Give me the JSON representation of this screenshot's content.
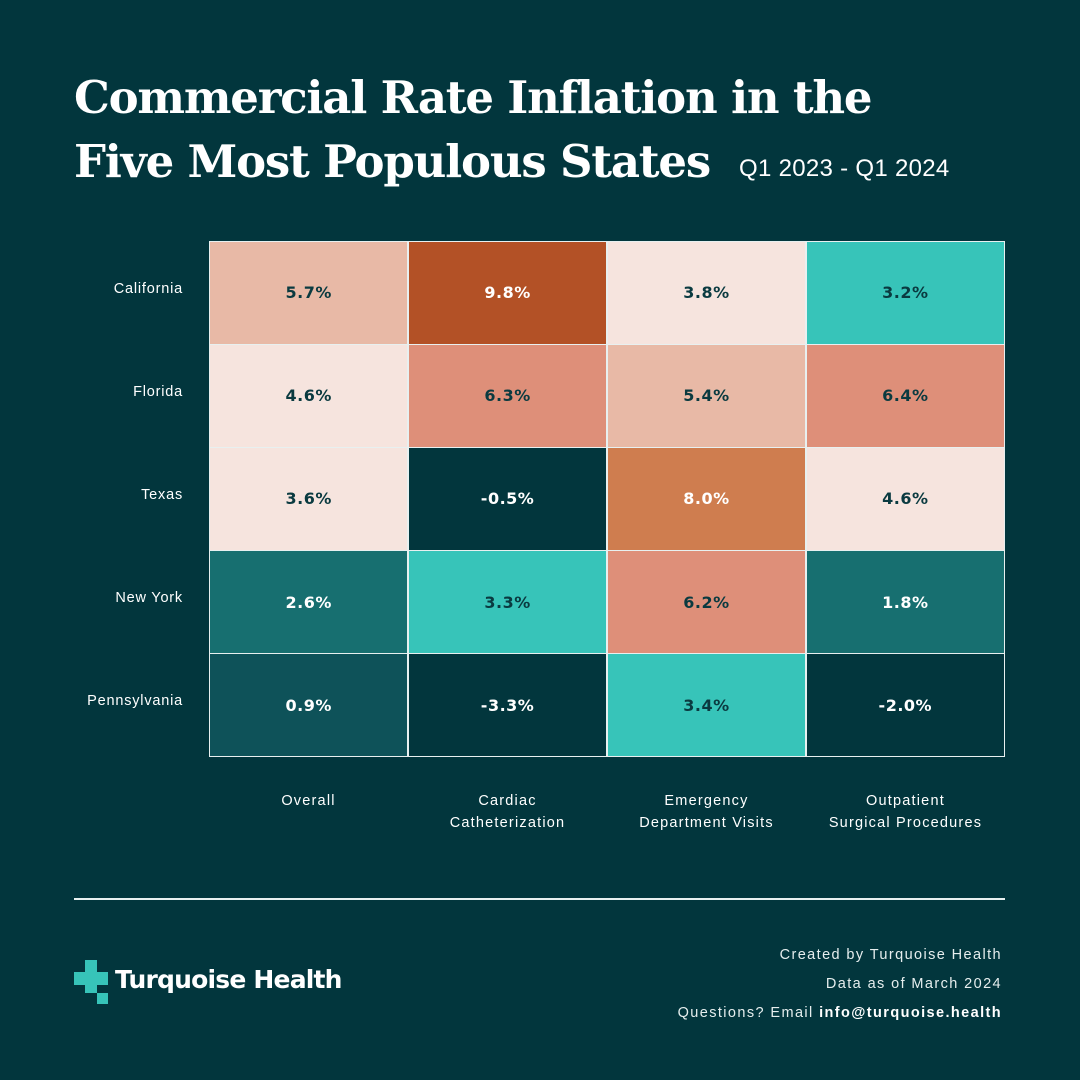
{
  "header": {
    "title_line1": "Commercial Rate Inflation in the",
    "title_line2": "Five Most Populous States",
    "period": "Q1 2023 - Q1 2024"
  },
  "chart_data": {
    "type": "heatmap",
    "title": "Commercial Rate Inflation in the Five Most Populous States",
    "subtitle": "Q1 2023 - Q1 2024",
    "rows": [
      "California",
      "Florida",
      "Texas",
      "New York",
      "Pennsylvania"
    ],
    "columns": [
      [
        "Overall",
        ""
      ],
      [
        "Cardiac",
        "Catheterization"
      ],
      [
        "Emergency",
        "Department Visits"
      ],
      [
        "Outpatient",
        "Surgical Procedures"
      ]
    ],
    "column_names": [
      "Overall",
      "Cardiac Catheterization",
      "Emergency Department Visits",
      "Outpatient Surgical Procedures"
    ],
    "values": [
      [
        5.7,
        9.8,
        3.8,
        3.2
      ],
      [
        4.6,
        6.3,
        5.4,
        6.4
      ],
      [
        3.6,
        -0.5,
        8.0,
        4.6
      ],
      [
        2.6,
        3.3,
        6.2,
        1.8
      ],
      [
        0.9,
        -3.3,
        3.4,
        -2.0
      ]
    ],
    "labels": [
      [
        "5.7%",
        "9.8%",
        "3.8%",
        "3.2%"
      ],
      [
        "4.6%",
        "6.3%",
        "5.4%",
        "6.4%"
      ],
      [
        "3.6%",
        "-0.5%",
        "8.0%",
        "4.6%"
      ],
      [
        "2.6%",
        "3.3%",
        "6.2%",
        "1.8%"
      ],
      [
        "0.9%",
        "-3.3%",
        "3.4%",
        "-2.0%"
      ]
    ],
    "color_scale": [
      {
        "max": 0,
        "color": "#02363d",
        "text": "#ffffff"
      },
      {
        "max": 1.5,
        "color": "#0e5259",
        "text": "#ffffff"
      },
      {
        "max": 3.0,
        "color": "#176f70",
        "text": "#ffffff"
      },
      {
        "max": 3.5,
        "color": "#37c4b9",
        "text": "#0a3a40"
      },
      {
        "max": 5.0,
        "color": "#f6e4de",
        "text": "#0a3a40"
      },
      {
        "max": 6.0,
        "color": "#e8b9a6",
        "text": "#0a3a40"
      },
      {
        "max": 7.0,
        "color": "#de8f79",
        "text": "#0a3a40"
      },
      {
        "max": 9.0,
        "color": "#cf7d4f",
        "text": "#ffffff"
      },
      {
        "max": 100,
        "color": "#b35126",
        "text": "#ffffff"
      }
    ]
  },
  "footer": {
    "brand": "Turquoise Health",
    "brand_color": "#37c4b9",
    "credit": "Created by Turquoise Health",
    "data_as_of": "Data as of March 2024",
    "questions_prefix": "Questions?  Email ",
    "email": "info@turquoise.health"
  }
}
